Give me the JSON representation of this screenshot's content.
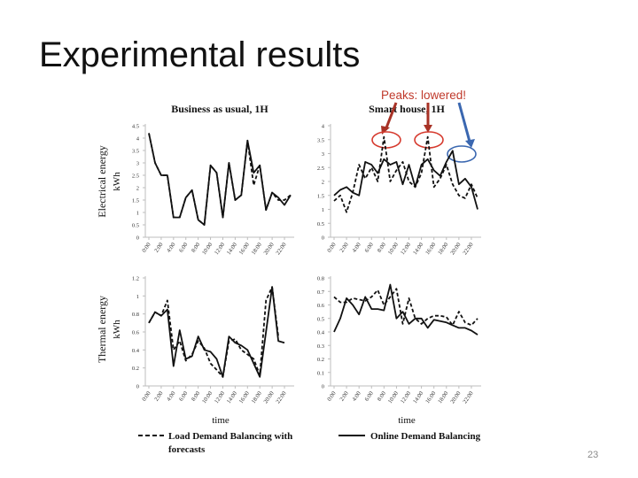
{
  "slide": {
    "title": "Experimental results",
    "page_number": "23"
  },
  "annotation": {
    "text": "Peaks: lowered!",
    "color": "#c0392b",
    "circle_colors": [
      "#d63a2e",
      "#d63a2e",
      "#3a67b0"
    ]
  },
  "figure": {
    "row_labels": {
      "electrical": [
        "Electrical energy",
        "kWh"
      ],
      "thermal": [
        "Thermal energy",
        "kWh"
      ]
    },
    "legend": {
      "forecast": [
        "Load Demand Balancing with",
        "forecasts"
      ],
      "online": "Online Demand Balancing"
    },
    "xlabel": "time",
    "colors": {
      "online": "#111111",
      "forecast": "#111111",
      "axis": "#bdbdbd"
    }
  },
  "chart_data": [
    {
      "type": "line",
      "id": "business-electrical",
      "title": "Business as usual, 1H",
      "ylim": [
        0,
        4.5
      ],
      "yticks": [
        "0",
        "0.5",
        "1",
        "1.5",
        "2",
        "2.5",
        "3",
        "3.5",
        "4",
        "4.5"
      ],
      "xlabel": "time",
      "ylabel": "Electrical energy kWh",
      "categories": [
        "0:00",
        "1:00",
        "2:00",
        "3:00",
        "4:00",
        "5:00",
        "6:00",
        "7:00",
        "8:00",
        "9:00",
        "10:00",
        "11:00",
        "12:00",
        "13:00",
        "14:00",
        "15:00",
        "16:00",
        "17:00",
        "18:00",
        "19:00",
        "20:00",
        "21:00",
        "22:00",
        "23:00"
      ],
      "xtick_labels": [
        "0:00",
        "2:00",
        "4:00",
        "6:00",
        "8:00",
        "10:00",
        "12:00",
        "14:00",
        "16:00",
        "18:00",
        "20:00",
        "22:00"
      ],
      "series": [
        {
          "name": "Online Demand Balancing",
          "style": "solid",
          "values": [
            4.2,
            3.0,
            2.5,
            2.5,
            0.8,
            0.8,
            1.6,
            1.9,
            0.7,
            0.5,
            2.9,
            2.6,
            0.8,
            3.0,
            1.5,
            1.7,
            3.9,
            2.6,
            2.9,
            1.1,
            1.8,
            1.6,
            1.3,
            1.7
          ]
        },
        {
          "name": "Load Demand Balancing with forecasts",
          "style": "dashed",
          "values": [
            4.2,
            3.0,
            2.5,
            2.5,
            0.8,
            0.8,
            1.6,
            1.9,
            0.7,
            0.5,
            2.9,
            2.6,
            0.8,
            3.0,
            1.5,
            1.7,
            3.9,
            2.1,
            2.9,
            1.1,
            1.8,
            1.5,
            1.5,
            1.7
          ]
        }
      ]
    },
    {
      "type": "line",
      "id": "smart-electrical",
      "title": "Smart house, 1H",
      "ylim": [
        0,
        4
      ],
      "yticks": [
        "0",
        "0.5",
        "1",
        "1.5",
        "2",
        "2.5",
        "3",
        "3.5",
        "4"
      ],
      "xlabel": "time",
      "categories": [
        "0:00",
        "1:00",
        "2:00",
        "3:00",
        "4:00",
        "5:00",
        "6:00",
        "7:00",
        "8:00",
        "9:00",
        "10:00",
        "11:00",
        "12:00",
        "13:00",
        "14:00",
        "15:00",
        "16:00",
        "17:00",
        "18:00",
        "19:00",
        "20:00",
        "21:00",
        "22:00",
        "23:00"
      ],
      "xtick_labels": [
        "0:00",
        "2:00",
        "4:00",
        "6:00",
        "8:00",
        "10:00",
        "12:00",
        "14:00",
        "16:00",
        "18:00",
        "20:00",
        "22:00"
      ],
      "series": [
        {
          "name": "Online Demand Balancing",
          "style": "solid",
          "values": [
            1.5,
            1.7,
            1.8,
            1.6,
            1.5,
            2.7,
            2.6,
            2.3,
            2.8,
            2.6,
            2.7,
            1.9,
            2.6,
            1.8,
            2.6,
            2.8,
            2.4,
            2.2,
            2.7,
            3.1,
            1.9,
            2.1,
            1.8,
            1.0
          ]
        },
        {
          "name": "Load Demand Balancing with forecasts",
          "style": "dashed",
          "values": [
            1.3,
            1.5,
            0.9,
            1.6,
            2.6,
            2.1,
            2.5,
            2.0,
            3.6,
            2.0,
            2.4,
            2.7,
            2.0,
            1.8,
            2.3,
            3.6,
            1.8,
            2.1,
            2.6,
            1.9,
            1.5,
            1.4,
            1.9,
            1.4
          ]
        }
      ]
    },
    {
      "type": "line",
      "id": "business-thermal",
      "ylim": [
        0,
        1.2
      ],
      "yticks": [
        "0",
        "0.2",
        "0.4",
        "0.6",
        "0.8",
        "1",
        "1.2"
      ],
      "xlabel": "time",
      "ylabel": "Thermal energy kWh",
      "categories": [
        "0:00",
        "1:00",
        "2:00",
        "3:00",
        "4:00",
        "5:00",
        "6:00",
        "7:00",
        "8:00",
        "9:00",
        "10:00",
        "11:00",
        "12:00",
        "13:00",
        "14:00",
        "15:00",
        "16:00",
        "17:00",
        "18:00",
        "19:00",
        "20:00",
        "21:00",
        "22:00",
        "23:00"
      ],
      "xtick_labels": [
        "0:00",
        "2:00",
        "4:00",
        "6:00",
        "8:00",
        "10:00",
        "12:00",
        "14:00",
        "16:00",
        "18:00",
        "20:00",
        "22:00"
      ],
      "series": [
        {
          "name": "Online Demand Balancing",
          "style": "solid",
          "values": [
            0.7,
            0.82,
            0.78,
            0.85,
            0.22,
            0.62,
            0.3,
            0.33,
            0.55,
            0.4,
            0.38,
            0.3,
            0.1,
            0.55,
            0.48,
            0.45,
            0.4,
            0.25,
            0.1,
            0.6,
            1.1,
            0.5,
            0.48,
            null
          ]
        },
        {
          "name": "Load Demand Balancing with forecasts",
          "style": "dashed",
          "values": [
            0.7,
            0.82,
            0.78,
            0.95,
            0.4,
            0.5,
            0.28,
            0.35,
            0.5,
            0.42,
            0.25,
            0.18,
            0.1,
            0.5,
            0.52,
            0.4,
            0.35,
            0.3,
            0.12,
            0.95,
            1.1,
            0.55,
            null,
            null
          ]
        }
      ]
    },
    {
      "type": "line",
      "id": "smart-thermal",
      "ylim": [
        0,
        0.8
      ],
      "yticks": [
        "0",
        "0.1",
        "0.2",
        "0.3",
        "0.4",
        "0.5",
        "0.6",
        "0.7",
        "0.8"
      ],
      "xlabel": "time",
      "categories": [
        "0:00",
        "1:00",
        "2:00",
        "3:00",
        "4:00",
        "5:00",
        "6:00",
        "7:00",
        "8:00",
        "9:00",
        "10:00",
        "11:00",
        "12:00",
        "13:00",
        "14:00",
        "15:00",
        "16:00",
        "17:00",
        "18:00",
        "19:00",
        "20:00",
        "21:00",
        "22:00",
        "23:00"
      ],
      "xtick_labels": [
        "0:00",
        "2:00",
        "4:00",
        "6:00",
        "8:00",
        "10:00",
        "12:00",
        "14:00",
        "16:00",
        "18:00",
        "20:00",
        "22:00"
      ],
      "series": [
        {
          "name": "Online Demand Balancing",
          "style": "solid",
          "values": [
            0.4,
            0.5,
            0.65,
            0.6,
            0.53,
            0.66,
            0.57,
            0.57,
            0.56,
            0.75,
            0.5,
            0.55,
            0.46,
            0.5,
            0.5,
            0.43,
            0.49,
            0.48,
            0.47,
            0.45,
            0.43,
            0.43,
            0.41,
            0.38
          ]
        },
        {
          "name": "Load Demand Balancing with forecasts",
          "style": "dashed",
          "values": [
            0.66,
            0.62,
            0.62,
            0.65,
            0.64,
            0.63,
            0.66,
            0.71,
            0.6,
            0.66,
            0.72,
            0.46,
            0.65,
            0.5,
            0.46,
            0.5,
            0.52,
            0.52,
            0.51,
            0.45,
            0.55,
            0.47,
            0.45,
            0.5
          ]
        }
      ]
    }
  ]
}
